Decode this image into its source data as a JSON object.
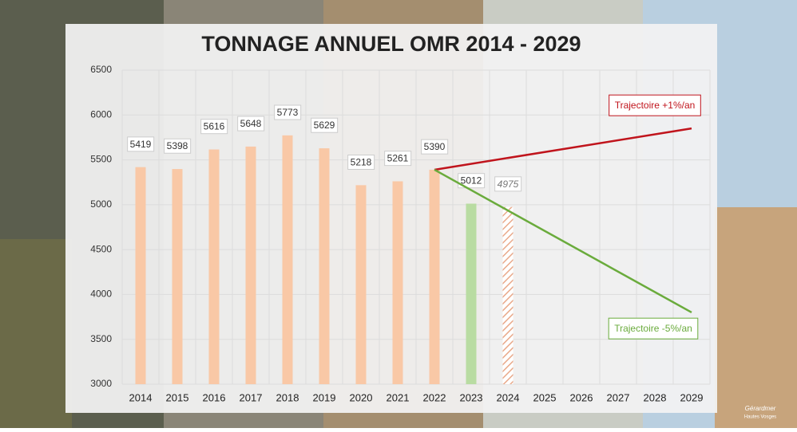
{
  "chart_data": {
    "type": "bar",
    "title": "TONNAGE ANNUEL OMR 2014 - 2029",
    "categories": [
      "2014",
      "2015",
      "2016",
      "2017",
      "2018",
      "2019",
      "2020",
      "2021",
      "2022",
      "2023",
      "2024",
      "2025",
      "2026",
      "2027",
      "2028",
      "2029"
    ],
    "values": [
      5419,
      5398,
      5616,
      5648,
      5773,
      5629,
      5218,
      5261,
      5390,
      5012,
      4975,
      null,
      null,
      null,
      null,
      null
    ],
    "bar_colors": [
      "#f9c8a6",
      "#f9c8a6",
      "#f9c8a6",
      "#f9c8a6",
      "#f9c8a6",
      "#f9c8a6",
      "#f9c8a6",
      "#f9c8a6",
      "#f9c8a6",
      "#b9dca2",
      "#e9a98a",
      null,
      null,
      null,
      null,
      null
    ],
    "hatched_index": 10,
    "lines": [
      {
        "name": "Trajectoire +1%/an",
        "color": "#c0141c",
        "values": [
          null,
          null,
          null,
          null,
          null,
          null,
          null,
          null,
          5390,
          null,
          null,
          null,
          null,
          null,
          null,
          5850
        ]
      },
      {
        "name": "Trajectoire -5%/an",
        "color": "#6aab3c",
        "values": [
          null,
          null,
          null,
          null,
          null,
          null,
          null,
          null,
          5390,
          null,
          null,
          null,
          null,
          null,
          null,
          3800
        ]
      }
    ],
    "ylim": [
      3000,
      6500
    ],
    "yticks": [
      3000,
      3500,
      4000,
      4500,
      5000,
      5500,
      6000,
      6500
    ],
    "grid": true,
    "logo": [
      "Gérardmer",
      "Hautes Vosges"
    ]
  }
}
